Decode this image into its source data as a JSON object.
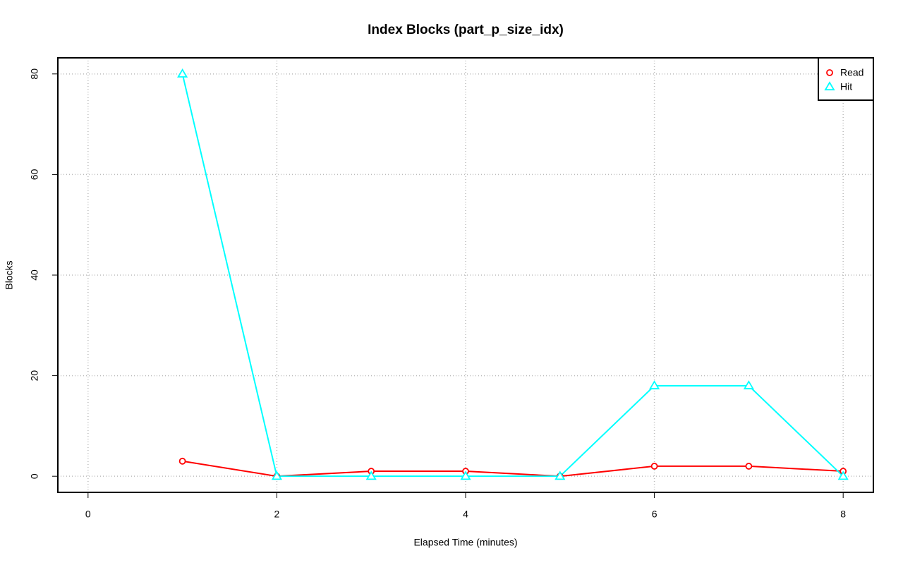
{
  "chart_data": {
    "type": "line",
    "title": "Index Blocks (part_p_size_idx)",
    "x_label": "Elapsed Time (minutes)",
    "y_label": "Blocks",
    "x": [
      1,
      2,
      3,
      4,
      5,
      6,
      7,
      8
    ],
    "series": [
      {
        "name": "Read",
        "color": "#ff0000",
        "marker": "circle",
        "values": [
          3,
          0,
          1,
          1,
          0,
          2,
          2,
          1
        ]
      },
      {
        "name": "Hit",
        "color": "#00ffff",
        "marker": "triangle",
        "values": [
          80,
          0,
          0,
          0,
          0,
          18,
          18,
          0
        ]
      }
    ],
    "xlim": [
      -0.32,
      8.32
    ],
    "xticks": [
      0,
      2,
      4,
      6,
      8
    ],
    "ylim": [
      -3.2,
      83.2
    ],
    "yticks": [
      0,
      20,
      40,
      60,
      80
    ],
    "grid": true,
    "legend": "top-right"
  }
}
